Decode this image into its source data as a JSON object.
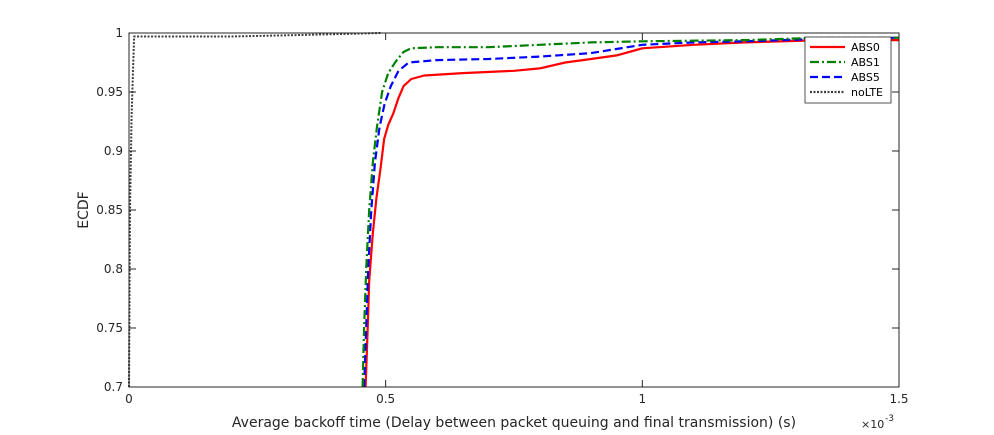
{
  "chart_data": {
    "type": "line",
    "xlabel": "Average backoff time (Delay between packet queuing and final transmission) (s)",
    "ylabel": "ECDF",
    "x_multiplier_base": "×10",
    "x_multiplier_exp": "-3",
    "xlim": [
      0,
      1.5
    ],
    "ylim": [
      0.7,
      1.0
    ],
    "x_ticks": [
      0,
      0.5,
      1,
      1.5
    ],
    "x_tick_labels": [
      "0",
      "0.5",
      "1",
      "1.5"
    ],
    "y_ticks": [
      0.7,
      0.75,
      0.8,
      0.85,
      0.9,
      0.95,
      1.0
    ],
    "y_tick_labels": [
      "0.7",
      "0.75",
      "0.8",
      "0.85",
      "0.9",
      "0.95",
      "1"
    ],
    "grid": false,
    "legend_position": "top-right",
    "series": [
      {
        "name": "ABS0",
        "color": "#ff0000",
        "dash": "solid",
        "points": [
          [
            0.461,
            0.7
          ],
          [
            0.465,
            0.75
          ],
          [
            0.468,
            0.79
          ],
          [
            0.475,
            0.83
          ],
          [
            0.482,
            0.86
          ],
          [
            0.49,
            0.885
          ],
          [
            0.497,
            0.91
          ],
          [
            0.505,
            0.922
          ],
          [
            0.515,
            0.932
          ],
          [
            0.525,
            0.945
          ],
          [
            0.535,
            0.955
          ],
          [
            0.55,
            0.961
          ],
          [
            0.575,
            0.964
          ],
          [
            0.65,
            0.966
          ],
          [
            0.75,
            0.968
          ],
          [
            0.8,
            0.97
          ],
          [
            0.85,
            0.975
          ],
          [
            0.9,
            0.978
          ],
          [
            0.95,
            0.981
          ],
          [
            1.0,
            0.987
          ],
          [
            1.1,
            0.99
          ],
          [
            1.2,
            0.992
          ],
          [
            1.35,
            0.994
          ],
          [
            1.5,
            0.994
          ]
        ]
      },
      {
        "name": "ABS1",
        "color": "#008000",
        "dash": "dashdot",
        "points": [
          [
            0.455,
            0.7
          ],
          [
            0.458,
            0.75
          ],
          [
            0.462,
            0.8
          ],
          [
            0.468,
            0.85
          ],
          [
            0.475,
            0.89
          ],
          [
            0.483,
            0.92
          ],
          [
            0.493,
            0.95
          ],
          [
            0.505,
            0.966
          ],
          [
            0.52,
            0.976
          ],
          [
            0.535,
            0.984
          ],
          [
            0.55,
            0.987
          ],
          [
            0.6,
            0.988
          ],
          [
            0.7,
            0.988
          ],
          [
            0.8,
            0.99
          ],
          [
            0.9,
            0.992
          ],
          [
            1.0,
            0.993
          ],
          [
            1.2,
            0.994
          ],
          [
            1.35,
            0.996
          ],
          [
            1.5,
            0.996
          ]
        ]
      },
      {
        "name": "ABS5",
        "color": "#0000ff",
        "dash": "dashed",
        "points": [
          [
            0.458,
            0.7
          ],
          [
            0.462,
            0.75
          ],
          [
            0.466,
            0.8
          ],
          [
            0.472,
            0.85
          ],
          [
            0.479,
            0.89
          ],
          [
            0.488,
            0.92
          ],
          [
            0.498,
            0.94
          ],
          [
            0.51,
            0.955
          ],
          [
            0.525,
            0.968
          ],
          [
            0.545,
            0.975
          ],
          [
            0.6,
            0.977
          ],
          [
            0.7,
            0.978
          ],
          [
            0.8,
            0.98
          ],
          [
            0.9,
            0.983
          ],
          [
            1.0,
            0.99
          ],
          [
            1.1,
            0.992
          ],
          [
            1.2,
            0.993
          ],
          [
            1.35,
            0.995
          ],
          [
            1.5,
            0.996
          ]
        ]
      },
      {
        "name": "noLTE",
        "color": "#404040",
        "dash": "dotted",
        "points": [
          [
            0.0,
            0.7
          ],
          [
            0.002,
            0.85
          ],
          [
            0.005,
            0.93
          ],
          [
            0.01,
            0.997
          ],
          [
            0.2,
            0.997
          ],
          [
            0.3,
            0.998
          ],
          [
            0.4,
            0.999
          ],
          [
            0.49,
            1.0
          ]
        ]
      }
    ]
  }
}
